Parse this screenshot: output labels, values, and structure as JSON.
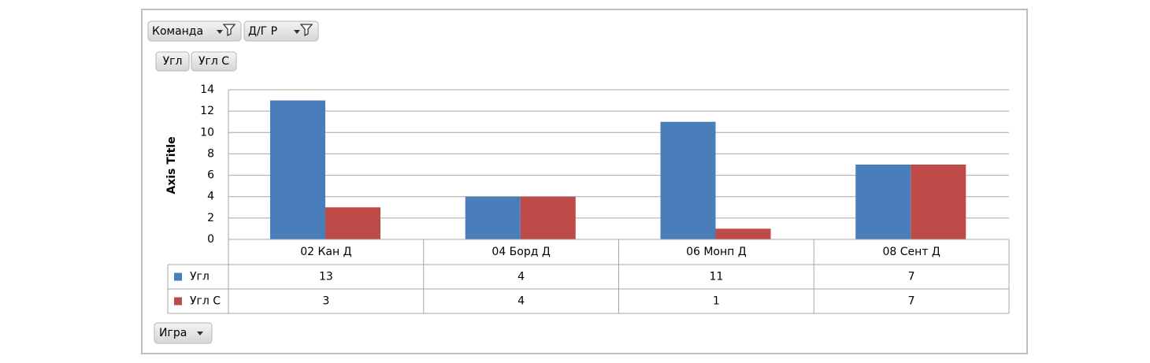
{
  "chart_data": {
    "type": "bar",
    "report_filters": [
      "Команда",
      "Д/Г Р"
    ],
    "axis_fields": [
      "Игра"
    ],
    "y_axis_title": "Axis Title",
    "categories": [
      "02 Кан Д",
      "04 Борд Д",
      "06 Монп Д",
      "08 Сент Д"
    ],
    "series": [
      {
        "name": "Угл",
        "color": "#4a7ebb",
        "values": [
          13,
          4,
          11,
          7
        ]
      },
      {
        "name": "Угл С",
        "color": "#be4b48",
        "values": [
          3,
          4,
          1,
          7
        ]
      }
    ],
    "ylim": [
      0,
      14
    ],
    "yticks": [
      0,
      2,
      4,
      6,
      8,
      10,
      12,
      14
    ],
    "grid": true
  }
}
